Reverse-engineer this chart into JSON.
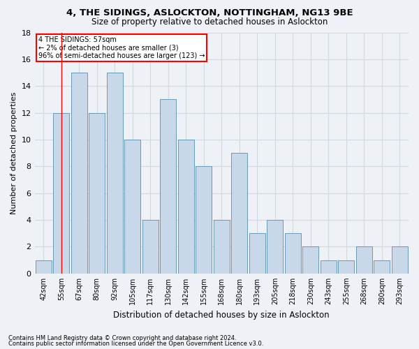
{
  "title1": "4, THE SIDINGS, ASLOCKTON, NOTTINGHAM, NG13 9BE",
  "title2": "Size of property relative to detached houses in Aslockton",
  "xlabel": "Distribution of detached houses by size in Aslockton",
  "ylabel": "Number of detached properties",
  "footnote1": "Contains HM Land Registry data © Crown copyright and database right 2024.",
  "footnote2": "Contains public sector information licensed under the Open Government Licence v3.0.",
  "categories": [
    "42sqm",
    "55sqm",
    "67sqm",
    "80sqm",
    "92sqm",
    "105sqm",
    "117sqm",
    "130sqm",
    "142sqm",
    "155sqm",
    "168sqm",
    "180sqm",
    "193sqm",
    "205sqm",
    "218sqm",
    "230sqm",
    "243sqm",
    "255sqm",
    "268sqm",
    "280sqm",
    "293sqm"
  ],
  "values": [
    1,
    12,
    15,
    12,
    15,
    10,
    4,
    13,
    10,
    8,
    4,
    9,
    3,
    4,
    3,
    2,
    1,
    1,
    2,
    1,
    2
  ],
  "bar_color": "#c8d8e8",
  "bar_edge_color": "#6699bb",
  "annotation_box_text1": "4 THE SIDINGS: 57sqm",
  "annotation_box_text2": "← 2% of detached houses are smaller (3)",
  "annotation_box_text3": "96% of semi-detached houses are larger (123) →",
  "annotation_box_color": "white",
  "annotation_box_edge_color": "red",
  "red_line_x": 1.0,
  "ylim": [
    0,
    18
  ],
  "yticks": [
    0,
    2,
    4,
    6,
    8,
    10,
    12,
    14,
    16,
    18
  ],
  "grid_color": "#d0d8e0",
  "bg_color": "#eef2f6"
}
